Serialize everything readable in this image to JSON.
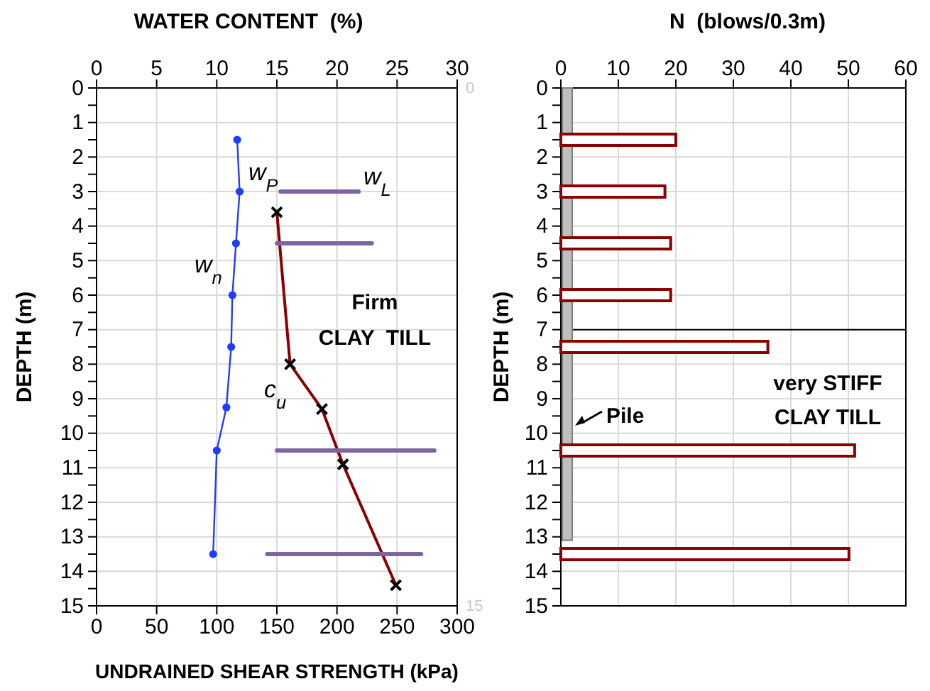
{
  "chart_data": [
    {
      "type": "line",
      "x2label": "WATER CONTENT  (%)",
      "xlabel": "UNDRAINED  SHEAR  STRENGTH  (kPa)",
      "ylabel": "DEPTH  (m)",
      "xlim": [
        0,
        300
      ],
      "xticks": [
        0,
        50,
        100,
        150,
        200,
        250,
        300
      ],
      "x2lim": [
        0,
        30
      ],
      "x2ticks": [
        0,
        5,
        10,
        15,
        20,
        25,
        30
      ],
      "ylim": [
        15,
        0
      ],
      "yticks": [
        0,
        {
          "value": 0.5,
          "label": null
        },
        1,
        {
          "value": 1.5,
          "label": null
        },
        2,
        {
          "value": 2.5,
          "label": null
        },
        3,
        {
          "value": 3.5,
          "label": null
        },
        4,
        {
          "value": 4.5,
          "label": null
        },
        5,
        {
          "value": 5.5,
          "label": null
        },
        6,
        {
          "value": 6.5,
          "label": null
        },
        7,
        {
          "value": 7.5,
          "label": null
        },
        8,
        {
          "value": 8.5,
          "label": null
        },
        9,
        {
          "value": 9.5,
          "label": null
        },
        10,
        {
          "value": 10.5,
          "label": null
        },
        11,
        {
          "value": 11.5,
          "label": null
        },
        12,
        {
          "value": 12.5,
          "label": null
        },
        13,
        {
          "value": 13.5,
          "label": null
        },
        14,
        {
          "value": 14.5,
          "label": null
        },
        15
      ],
      "y2lim": [
        15,
        0
      ],
      "y2ticks": [
        0,
        15
      ],
      "grid": true,
      "series": [
        {
          "name": "w$_{n}$",
          "axis": "x2",
          "color": "#1f3cff",
          "marker": "circle",
          "x": [
            11.7,
            11.9,
            11.6,
            11.3,
            11.2,
            10.8,
            10.0,
            9.7
          ],
          "values": [
            1.5,
            3.0,
            4.5,
            6.0,
            7.5,
            9.25,
            10.5,
            13.5
          ]
        },
        {
          "name": "c$_{u}$",
          "color": "#8b0000",
          "marker": "cross",
          "x": [
            150,
            161,
            187.5,
            205,
            249
          ],
          "values": [
            3.6,
            8.0,
            9.3,
            10.9,
            14.4
          ]
        },
        {
          "axis": "x2",
          "color": "#8064a2",
          "marker": "none",
          "x": [
            15.3,
            21.8
          ],
          "values": [
            3.0,
            3.0
          ]
        },
        {
          "axis": "x2",
          "color": "#8064a2",
          "marker": "none",
          "x": [
            15.0,
            22.9
          ],
          "values": [
            4.5,
            4.5
          ]
        },
        {
          "axis": "x2",
          "color": "#8064a2",
          "marker": "none",
          "x": [
            15.0,
            28.1
          ],
          "values": [
            10.5,
            10.5
          ]
        },
        {
          "axis": "x2",
          "color": "#8064a2",
          "marker": "none",
          "x": [
            14.2,
            27.0
          ],
          "values": [
            13.5,
            13.5
          ]
        }
      ],
      "annotations": [
        "w$_{P}$",
        "w$_{L}$",
        "Firm",
        "CLAY  TILL"
      ]
    },
    {
      "type": "bar",
      "orientation": "horizontal",
      "x2label": "N  (blows/0.3m)",
      "ylabel": "DEPTH  (m)",
      "x2lim": [
        0,
        60
      ],
      "x2ticks": [
        0,
        10,
        20,
        30,
        40,
        50,
        60
      ],
      "grid": true,
      "ylim": [
        15,
        0
      ],
      "yticks": [
        0,
        {
          "value": 0.5,
          "label": null
        },
        1,
        {
          "value": 1.5,
          "label": null
        },
        2,
        {
          "value": 2.5,
          "label": null
        },
        3,
        {
          "value": 3.5,
          "label": null
        },
        4,
        {
          "value": 4.5,
          "label": null
        },
        5,
        {
          "value": 5.5,
          "label": null
        },
        6,
        {
          "value": 6.5,
          "label": null
        },
        7,
        {
          "value": 7.5,
          "label": null
        },
        8,
        {
          "value": 8.5,
          "label": null
        },
        9,
        {
          "value": 9.5,
          "label": null
        },
        10,
        {
          "value": 10.5,
          "label": null
        },
        11,
        {
          "value": 11.5,
          "label": null
        },
        12,
        {
          "value": 12.5,
          "label": null
        },
        13,
        {
          "value": 13.5,
          "label": null
        },
        14,
        {
          "value": 14.5,
          "label": null
        },
        15
      ],
      "series": [
        {
          "axis": "x2",
          "color": "#8b0000",
          "x": [
            1.5,
            3.0,
            4.5,
            6.0,
            7.5,
            10.5,
            13.5
          ],
          "values": [
            20,
            18.1,
            19.1,
            19.1,
            36,
            51.1,
            50.1
          ]
        }
      ],
      "ref_lines": [
        {
          "axis": "y",
          "value": 7,
          "color": "#000000"
        }
      ],
      "annotations": [
        "Pile",
        "very STIFF",
        "CLAY TILL"
      ]
    }
  ]
}
